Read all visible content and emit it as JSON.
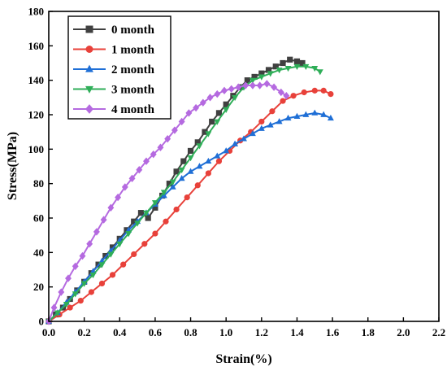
{
  "chart_data": {
    "type": "line",
    "xlabel": "Strain(%)",
    "ylabel": "Stress(MPa)",
    "xlim": [
      0.0,
      2.2
    ],
    "ylim": [
      0,
      180
    ],
    "x_ticks": [
      "0.0",
      "0.2",
      "0.4",
      "0.6",
      "0.8",
      "1.0",
      "1.2",
      "1.4",
      "1.6",
      "1.8",
      "2.0",
      "2.2"
    ],
    "y_ticks": [
      "0",
      "20",
      "40",
      "60",
      "80",
      "100",
      "120",
      "140",
      "160",
      "180"
    ],
    "grid": false,
    "legend_position": "top-left",
    "series": [
      {
        "name": "0 month",
        "color": "#404040",
        "marker": "square",
        "points": [
          [
            0,
            0
          ],
          [
            0.04,
            4
          ],
          [
            0.08,
            8
          ],
          [
            0.12,
            13
          ],
          [
            0.16,
            18
          ],
          [
            0.2,
            23
          ],
          [
            0.24,
            28
          ],
          [
            0.28,
            33
          ],
          [
            0.32,
            38
          ],
          [
            0.36,
            43
          ],
          [
            0.4,
            48
          ],
          [
            0.44,
            53
          ],
          [
            0.48,
            58
          ],
          [
            0.52,
            63
          ],
          [
            0.56,
            60
          ],
          [
            0.6,
            66
          ],
          [
            0.64,
            73
          ],
          [
            0.68,
            80
          ],
          [
            0.72,
            87
          ],
          [
            0.76,
            93
          ],
          [
            0.8,
            99
          ],
          [
            0.84,
            104
          ],
          [
            0.88,
            110
          ],
          [
            0.92,
            116
          ],
          [
            0.96,
            121
          ],
          [
            1.0,
            126
          ],
          [
            1.04,
            131
          ],
          [
            1.08,
            136
          ],
          [
            1.12,
            140
          ],
          [
            1.16,
            142
          ],
          [
            1.2,
            144
          ],
          [
            1.24,
            146
          ],
          [
            1.28,
            148
          ],
          [
            1.32,
            150
          ],
          [
            1.36,
            152
          ],
          [
            1.4,
            151
          ],
          [
            1.43,
            150
          ]
        ]
      },
      {
        "name": "1 month",
        "color": "#e8413a",
        "marker": "circle",
        "points": [
          [
            0,
            0
          ],
          [
            0.06,
            4
          ],
          [
            0.12,
            8
          ],
          [
            0.18,
            12
          ],
          [
            0.24,
            17
          ],
          [
            0.3,
            22
          ],
          [
            0.36,
            27
          ],
          [
            0.42,
            33
          ],
          [
            0.48,
            39
          ],
          [
            0.54,
            45
          ],
          [
            0.6,
            51
          ],
          [
            0.66,
            58
          ],
          [
            0.72,
            65
          ],
          [
            0.78,
            72
          ],
          [
            0.84,
            79
          ],
          [
            0.9,
            86
          ],
          [
            0.96,
            93
          ],
          [
            1.02,
            99
          ],
          [
            1.08,
            105
          ],
          [
            1.14,
            110
          ],
          [
            1.2,
            116
          ],
          [
            1.26,
            122
          ],
          [
            1.32,
            128
          ],
          [
            1.38,
            131
          ],
          [
            1.44,
            133
          ],
          [
            1.5,
            134
          ],
          [
            1.55,
            134
          ],
          [
            1.59,
            132
          ]
        ]
      },
      {
        "name": "2 month",
        "color": "#1f6fd6",
        "marker": "triangle-up",
        "points": [
          [
            0,
            0
          ],
          [
            0.05,
            5
          ],
          [
            0.1,
            11
          ],
          [
            0.15,
            17
          ],
          [
            0.2,
            23
          ],
          [
            0.25,
            29
          ],
          [
            0.3,
            35
          ],
          [
            0.35,
            41
          ],
          [
            0.4,
            47
          ],
          [
            0.45,
            53
          ],
          [
            0.5,
            58
          ],
          [
            0.55,
            63
          ],
          [
            0.6,
            68
          ],
          [
            0.65,
            73
          ],
          [
            0.7,
            78
          ],
          [
            0.75,
            83
          ],
          [
            0.8,
            87
          ],
          [
            0.85,
            90
          ],
          [
            0.9,
            93
          ],
          [
            0.95,
            96
          ],
          [
            1.0,
            99
          ],
          [
            1.05,
            103
          ],
          [
            1.1,
            106
          ],
          [
            1.15,
            109
          ],
          [
            1.2,
            112
          ],
          [
            1.25,
            114
          ],
          [
            1.3,
            116
          ],
          [
            1.35,
            118
          ],
          [
            1.4,
            119
          ],
          [
            1.45,
            120
          ],
          [
            1.5,
            121
          ],
          [
            1.55,
            120
          ],
          [
            1.59,
            118
          ]
        ]
      },
      {
        "name": "3 month",
        "color": "#2fae58",
        "marker": "triangle-down",
        "points": [
          [
            0,
            0
          ],
          [
            0.05,
            5
          ],
          [
            0.1,
            10
          ],
          [
            0.15,
            16
          ],
          [
            0.2,
            22
          ],
          [
            0.25,
            27
          ],
          [
            0.3,
            33
          ],
          [
            0.35,
            39
          ],
          [
            0.4,
            45
          ],
          [
            0.45,
            51
          ],
          [
            0.5,
            57
          ],
          [
            0.55,
            63
          ],
          [
            0.6,
            69
          ],
          [
            0.65,
            75
          ],
          [
            0.7,
            81
          ],
          [
            0.75,
            88
          ],
          [
            0.8,
            95
          ],
          [
            0.85,
            102
          ],
          [
            0.9,
            109
          ],
          [
            0.95,
            116
          ],
          [
            1.0,
            123
          ],
          [
            1.05,
            130
          ],
          [
            1.1,
            136
          ],
          [
            1.15,
            140
          ],
          [
            1.2,
            142
          ],
          [
            1.25,
            144
          ],
          [
            1.3,
            146
          ],
          [
            1.35,
            147
          ],
          [
            1.4,
            148
          ],
          [
            1.45,
            148
          ],
          [
            1.5,
            147
          ],
          [
            1.53,
            145
          ]
        ]
      },
      {
        "name": "4 month",
        "color": "#b56ae0",
        "marker": "diamond",
        "points": [
          [
            0,
            0
          ],
          [
            0.03,
            8
          ],
          [
            0.07,
            17
          ],
          [
            0.11,
            25
          ],
          [
            0.15,
            32
          ],
          [
            0.19,
            38
          ],
          [
            0.23,
            45
          ],
          [
            0.27,
            52
          ],
          [
            0.31,
            59
          ],
          [
            0.35,
            66
          ],
          [
            0.39,
            72
          ],
          [
            0.43,
            78
          ],
          [
            0.47,
            83
          ],
          [
            0.51,
            88
          ],
          [
            0.55,
            93
          ],
          [
            0.59,
            97
          ],
          [
            0.63,
            101
          ],
          [
            0.67,
            106
          ],
          [
            0.71,
            111
          ],
          [
            0.75,
            116
          ],
          [
            0.79,
            121
          ],
          [
            0.83,
            124
          ],
          [
            0.87,
            127
          ],
          [
            0.91,
            130
          ],
          [
            0.95,
            132
          ],
          [
            0.99,
            134
          ],
          [
            1.03,
            135
          ],
          [
            1.07,
            136
          ],
          [
            1.11,
            137
          ],
          [
            1.15,
            137
          ],
          [
            1.19,
            137
          ],
          [
            1.23,
            138
          ],
          [
            1.27,
            136
          ],
          [
            1.31,
            133
          ],
          [
            1.34,
            131
          ]
        ]
      }
    ]
  }
}
